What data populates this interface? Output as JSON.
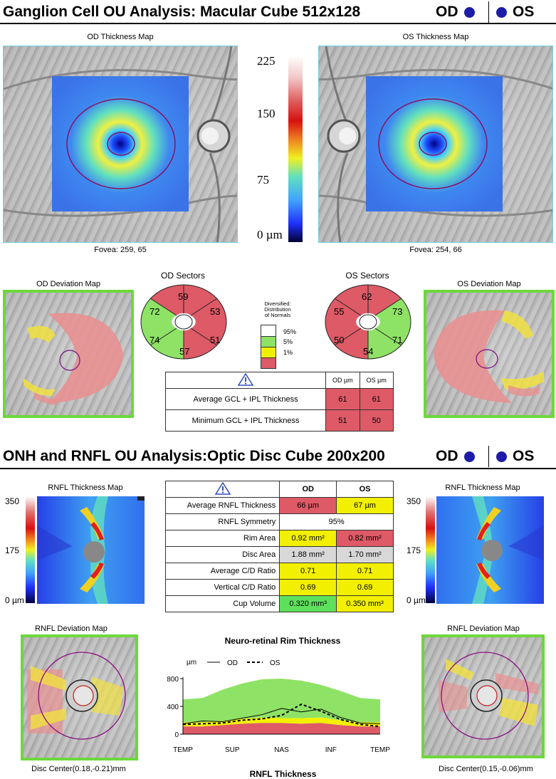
{
  "gcl": {
    "title": "Ganglion Cell OU Analysis: Macular Cube 512x128",
    "od": "OD",
    "os": "OS",
    "od_map_title": "OD Thickness Map",
    "os_map_title": "OS Thickness Map",
    "od_fovea": "Fovea: 259, 65",
    "os_fovea": "Fovea: 254, 66",
    "scale": {
      "max": "225",
      "mid_high": "150",
      "mid_low": "75",
      "min": "0 µm"
    },
    "od_dev_title": "OD Deviation Map",
    "os_dev_title": "OS Deviation Map",
    "od_sectors_title": "OD Sectors",
    "os_sectors_title": "OS Sectors",
    "od_sectors": {
      "sup_t": "59",
      "sup_n": "53",
      "tmp": "72",
      "nas": "51",
      "inf_t": "74",
      "inf_n": "57"
    },
    "os_sectors": {
      "sup_t": "62",
      "tmp": "55",
      "nas": "73",
      "inf_t": "50",
      "inf_n": "71",
      "bot": "54"
    },
    "legend": {
      "title": "Diversified:\nDistribution\nof Normals",
      "p95": "95%",
      "p5": "5%",
      "p1": "1%"
    },
    "table": {
      "col_od": "OD µm",
      "col_os": "OS µm",
      "rows": [
        {
          "label": "Average GCL + IPL Thickness",
          "od": "61",
          "os": "61"
        },
        {
          "label": "Minimum GCL + IPL Thickness",
          "od": "51",
          "os": "50"
        }
      ]
    }
  },
  "onh": {
    "title": "ONH and RNFL OU Analysis:Optic Disc Cube 200x200",
    "od": "OD",
    "os": "OS",
    "od_map_title": "RNFL Thickness Map",
    "os_map_title": "RNFL Thickness Map",
    "scale": {
      "max": "350",
      "mid": "175",
      "min": "0 µm"
    },
    "table": {
      "col_od": "OD",
      "col_os": "OS",
      "rows": [
        {
          "label": "Average RNFL Thickness",
          "od": "66 µm",
          "os": "67 µm",
          "od_c": "red",
          "os_c": "yel"
        },
        {
          "label": "RNFL Symmetry",
          "both": "95%"
        },
        {
          "label": "Rim Area",
          "od": "0.92 mm²",
          "os": "0.82 mm²",
          "od_c": "yel",
          "os_c": "red"
        },
        {
          "label": "Disc Area",
          "od": "1.88 mm²",
          "os": "1.70 mm²",
          "od_c": "gry",
          "os_c": "gry"
        },
        {
          "label": "Average C/D Ratio",
          "od": "0.71",
          "os": "0.71",
          "od_c": "yel",
          "os_c": "yel"
        },
        {
          "label": "Vertical C/D Ratio",
          "od": "0.69",
          "os": "0.69",
          "od_c": "yel",
          "os_c": "yel"
        },
        {
          "label": "Cup Volume",
          "od": "0.320 mm³",
          "os": "0.350 mm³",
          "od_c": "grn",
          "os_c": "yel"
        }
      ]
    },
    "od_dev_title": "RNFL Deviation Map",
    "os_dev_title": "RNFL Deviation Map",
    "od_disc_center": "Disc Center(0.18,-0.21)mm",
    "os_disc_center": "Disc Center(0.15,-0.06)mm",
    "next_section": "RNFL Thickness"
  },
  "chart_data": {
    "type": "area",
    "title": "Neuro-retinal Rim Thickness",
    "ylabel": "µm",
    "ylim": [
      0,
      800
    ],
    "yticks": [
      "800",
      "400",
      "0"
    ],
    "xticks": [
      "TEMP",
      "SUP",
      "NAS",
      "INF",
      "TEMP"
    ],
    "legend": [
      "OD",
      "OS"
    ],
    "x": [
      0,
      10,
      20,
      30,
      40,
      50,
      60,
      70,
      80,
      90,
      100
    ],
    "normal_95": [
      500,
      520,
      640,
      730,
      790,
      800,
      770,
      710,
      620,
      520,
      500
    ],
    "normal_5": [
      170,
      170,
      190,
      220,
      240,
      230,
      230,
      240,
      200,
      170,
      170
    ],
    "normal_1": [
      110,
      110,
      130,
      150,
      160,
      160,
      150,
      160,
      130,
      110,
      110
    ],
    "series": [
      {
        "name": "OD",
        "values": [
          150,
          190,
          180,
          230,
          280,
          370,
          320,
          360,
          240,
          160,
          150
        ]
      },
      {
        "name": "OS",
        "values": [
          140,
          150,
          160,
          200,
          220,
          270,
          430,
          330,
          210,
          140,
          110
        ]
      }
    ]
  }
}
